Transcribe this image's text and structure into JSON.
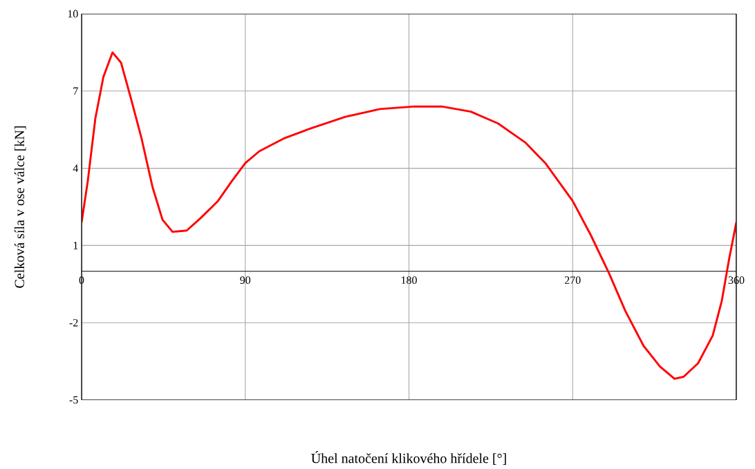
{
  "chart_data": {
    "type": "line",
    "xlabel": "Úhel natočení klikového hřídele [°]",
    "ylabel": "Celková síla v ose válce [kN]",
    "x": [
      0,
      3.4,
      7.6,
      12,
      17,
      21.7,
      27,
      33,
      39,
      44.5,
      50,
      57.8,
      65.4,
      75,
      82.5,
      90,
      97.7,
      111,
      126,
      145,
      164,
      183,
      198,
      214,
      229,
      244,
      255,
      270,
      280,
      290,
      299,
      309,
      318,
      326,
      331,
      339,
      347,
      352,
      356,
      360
    ],
    "values": [
      1.9,
      3.5,
      5.95,
      7.55,
      8.5,
      8.1,
      6.75,
      5.15,
      3.27,
      2.0,
      1.53,
      1.58,
      2.06,
      2.73,
      3.49,
      4.2,
      4.66,
      5.15,
      5.55,
      6.0,
      6.3,
      6.4,
      6.4,
      6.2,
      5.74,
      5.0,
      4.2,
      2.73,
      1.4,
      -0.08,
      -1.55,
      -2.9,
      -3.7,
      -4.18,
      -4.1,
      -3.57,
      -2.5,
      -1.15,
      0.46,
      1.9
    ],
    "color": "#ff0000",
    "xlim": [
      0,
      360
    ],
    "ylim": [
      -5,
      10
    ],
    "xticks": [
      0,
      90,
      180,
      270,
      360
    ],
    "yticks": [
      -5,
      -2,
      1,
      4,
      7,
      10
    ],
    "grid": true,
    "line_style": "solid",
    "marker": "none"
  }
}
